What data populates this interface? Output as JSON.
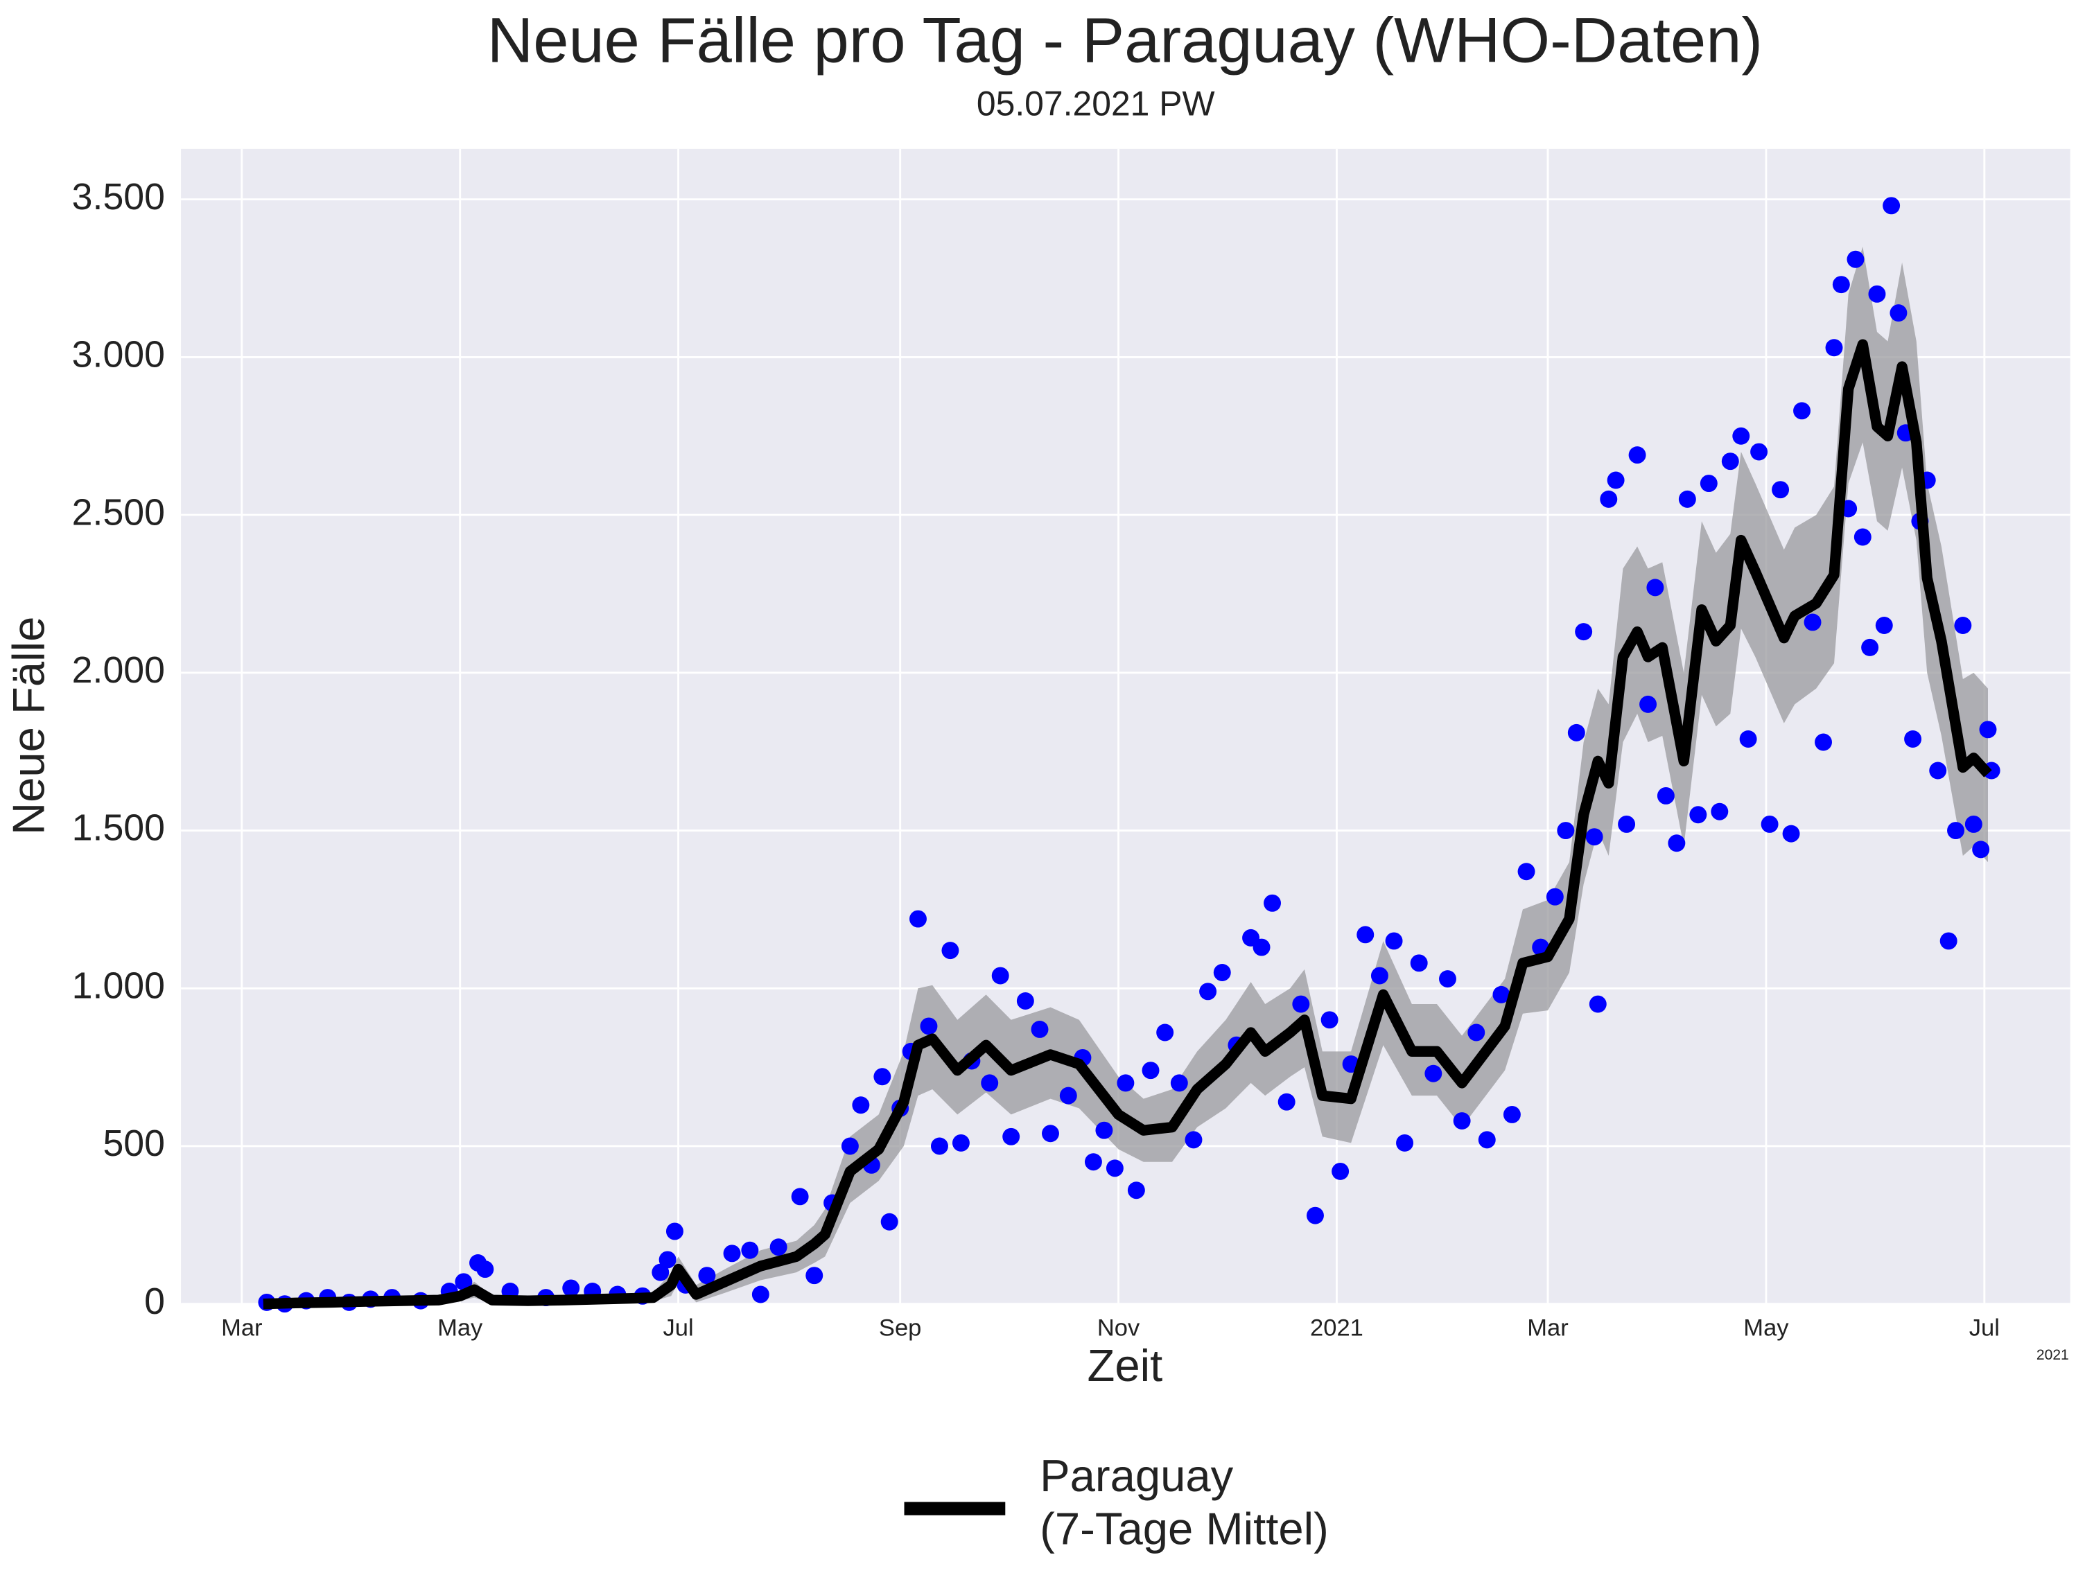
{
  "chart_data": {
    "type": "line",
    "title": "Neue Fälle pro Tag - Paraguay (WHO-Daten)",
    "subtitle": "05.07.2021 PW",
    "x_label": "Zeit",
    "y_label": "Neue Fälle",
    "x_offset_label": "2021",
    "xlim": [
      -17,
      511
    ],
    "ylim": [
      0,
      3660
    ],
    "xticks": [
      {
        "value": 0,
        "label": "Mar"
      },
      {
        "value": 61,
        "label": "May"
      },
      {
        "value": 122,
        "label": "Jul"
      },
      {
        "value": 184,
        "label": "Sep"
      },
      {
        "value": 245,
        "label": "Nov"
      },
      {
        "value": 306,
        "label": "2021"
      },
      {
        "value": 365,
        "label": "Mar"
      },
      {
        "value": 426,
        "label": "May"
      },
      {
        "value": 487,
        "label": "Jul"
      }
    ],
    "yticks": [
      0,
      500,
      {
        "value": 1000,
        "label": "1.000"
      },
      {
        "value": 1500,
        "label": "1.500"
      },
      {
        "value": 2000,
        "label": "2.000"
      },
      {
        "value": 2500,
        "label": "2.500"
      },
      {
        "value": 3000,
        "label": "3.000"
      },
      {
        "value": 3500,
        "label": "3.500"
      }
    ],
    "grid": true,
    "legend": "bottom",
    "series": [
      {
        "name": "Paraguay\n(7-Tage Mittel)",
        "color": "#000000",
        "x": [
          6,
          15,
          25,
          35,
          45,
          55,
          61,
          65,
          70,
          80,
          90,
          100,
          110,
          115,
          120,
          122,
          127,
          135,
          145,
          155,
          160,
          163,
          170,
          178,
          185,
          189,
          193,
          200,
          208,
          215,
          226,
          234,
          245,
          252,
          260,
          267,
          275,
          282,
          286,
          293,
          297,
          302,
          310,
          319,
          327,
          334,
          341,
          353,
          358,
          365,
          371,
          375,
          379,
          382,
          386,
          390,
          393,
          397,
          403,
          408,
          412,
          416,
          419,
          423,
          431,
          434,
          440,
          445,
          449,
          453,
          457,
          460,
          464,
          468,
          471,
          475,
          481,
          484,
          488
        ],
        "values": [
          0,
          3,
          5,
          8,
          10,
          12,
          25,
          45,
          12,
          10,
          12,
          15,
          18,
          20,
          60,
          110,
          30,
          70,
          120,
          150,
          190,
          220,
          420,
          490,
          640,
          820,
          840,
          740,
          820,
          740,
          790,
          760,
          600,
          550,
          560,
          680,
          760,
          860,
          800,
          860,
          900,
          660,
          650,
          980,
          800,
          800,
          700,
          880,
          1080,
          1100,
          1220,
          1550,
          1720,
          1650,
          2050,
          2130,
          2050,
          2080,
          1720,
          2200,
          2100,
          2150,
          2420,
          2320,
          2110,
          2180,
          2220,
          2310,
          2900,
          3040,
          2780,
          2750,
          2970,
          2730,
          2300,
          2100,
          1700,
          1730,
          1680
        ],
        "lower": [
          0,
          0,
          0,
          2,
          3,
          5,
          10,
          20,
          2,
          2,
          4,
          6,
          8,
          8,
          25,
          70,
          5,
          35,
          75,
          100,
          130,
          150,
          320,
          390,
          500,
          660,
          680,
          600,
          670,
          600,
          650,
          620,
          490,
          450,
          450,
          560,
          620,
          700,
          660,
          720,
          750,
          530,
          510,
          820,
          660,
          660,
          560,
          740,
          920,
          930,
          1050,
          1330,
          1500,
          1420,
          1780,
          1870,
          1780,
          1800,
          1450,
          1930,
          1830,
          1870,
          2140,
          2050,
          1840,
          1900,
          1950,
          2030,
          2600,
          2730,
          2480,
          2450,
          2650,
          2420,
          2000,
          1800,
          1420,
          1450,
          1400
        ],
        "upper": [
          5,
          8,
          10,
          15,
          18,
          20,
          40,
          70,
          25,
          20,
          22,
          25,
          30,
          35,
          100,
          150,
          60,
          110,
          170,
          200,
          250,
          300,
          530,
          600,
          800,
          1000,
          1010,
          900,
          980,
          900,
          940,
          900,
          720,
          650,
          680,
          800,
          900,
          1020,
          950,
          1000,
          1060,
          800,
          800,
          1150,
          950,
          950,
          850,
          1030,
          1250,
          1280,
          1400,
          1780,
          1950,
          1900,
          2330,
          2400,
          2330,
          2350,
          2000,
          2480,
          2380,
          2440,
          2700,
          2600,
          2390,
          2460,
          2500,
          2590,
          3200,
          3350,
          3080,
          3050,
          3300,
          3050,
          2600,
          2400,
          1980,
          2000,
          1950
        ],
        "band_color": "#9a9a9e"
      },
      {
        "type": "scatter",
        "color": "#0000ff",
        "x": [
          7,
          12,
          18,
          24,
          30,
          36,
          42,
          50,
          58,
          62,
          66,
          68,
          75,
          85,
          92,
          98,
          105,
          112,
          117,
          119,
          121,
          124,
          130,
          137,
          142,
          145,
          150,
          156,
          160,
          165,
          170,
          173,
          176,
          179,
          181,
          184,
          187,
          189,
          192,
          195,
          198,
          201,
          204,
          209,
          212,
          215,
          219,
          223,
          226,
          231,
          235,
          238,
          241,
          244,
          247,
          250,
          254,
          258,
          262,
          266,
          270,
          274,
          278,
          282,
          285,
          288,
          292,
          296,
          300,
          304,
          307,
          310,
          314,
          318,
          322,
          325,
          329,
          333,
          337,
          341,
          345,
          348,
          352,
          355,
          359,
          363,
          367,
          370,
          373,
          375,
          378,
          379,
          382,
          384,
          387,
          390,
          393,
          395,
          398,
          401,
          404,
          407,
          410,
          413,
          416,
          419,
          421,
          424,
          427,
          430,
          433,
          436,
          439,
          442,
          445,
          447,
          449,
          451,
          453,
          455,
          457,
          459,
          461,
          463,
          465,
          467,
          469,
          471,
          474,
          477,
          479,
          481,
          484,
          486,
          488,
          489
        ],
        "values": [
          5,
          0,
          10,
          20,
          5,
          15,
          20,
          10,
          40,
          70,
          130,
          110,
          40,
          20,
          50,
          40,
          30,
          25,
          100,
          140,
          230,
          60,
          90,
          160,
          170,
          30,
          180,
          340,
          90,
          320,
          500,
          630,
          440,
          720,
          260,
          620,
          800,
          1220,
          880,
          500,
          1120,
          510,
          770,
          700,
          1040,
          530,
          960,
          870,
          540,
          660,
          780,
          450,
          550,
          430,
          700,
          360,
          740,
          860,
          700,
          520,
          990,
          1050,
          820,
          1160,
          1130,
          1270,
          640,
          950,
          280,
          900,
          420,
          760,
          1170,
          1040,
          1150,
          510,
          1080,
          730,
          1030,
          580,
          860,
          520,
          980,
          600,
          1370,
          1130,
          1290,
          1500,
          1810,
          2130,
          1480,
          950,
          2550,
          2610,
          1520,
          2690,
          1900,
          2270,
          1610,
          1460,
          2550,
          1550,
          2600,
          1560,
          2670,
          2750,
          1790,
          2700,
          1520,
          2580,
          1490,
          2830,
          2160,
          1780,
          3030,
          3230,
          2520,
          3310,
          2430,
          2080,
          3200,
          2150,
          3480,
          3140,
          2760,
          1790,
          2480,
          2610,
          1690,
          1150,
          1500,
          2150,
          1520,
          1440,
          1820,
          1690
        ]
      }
    ]
  }
}
